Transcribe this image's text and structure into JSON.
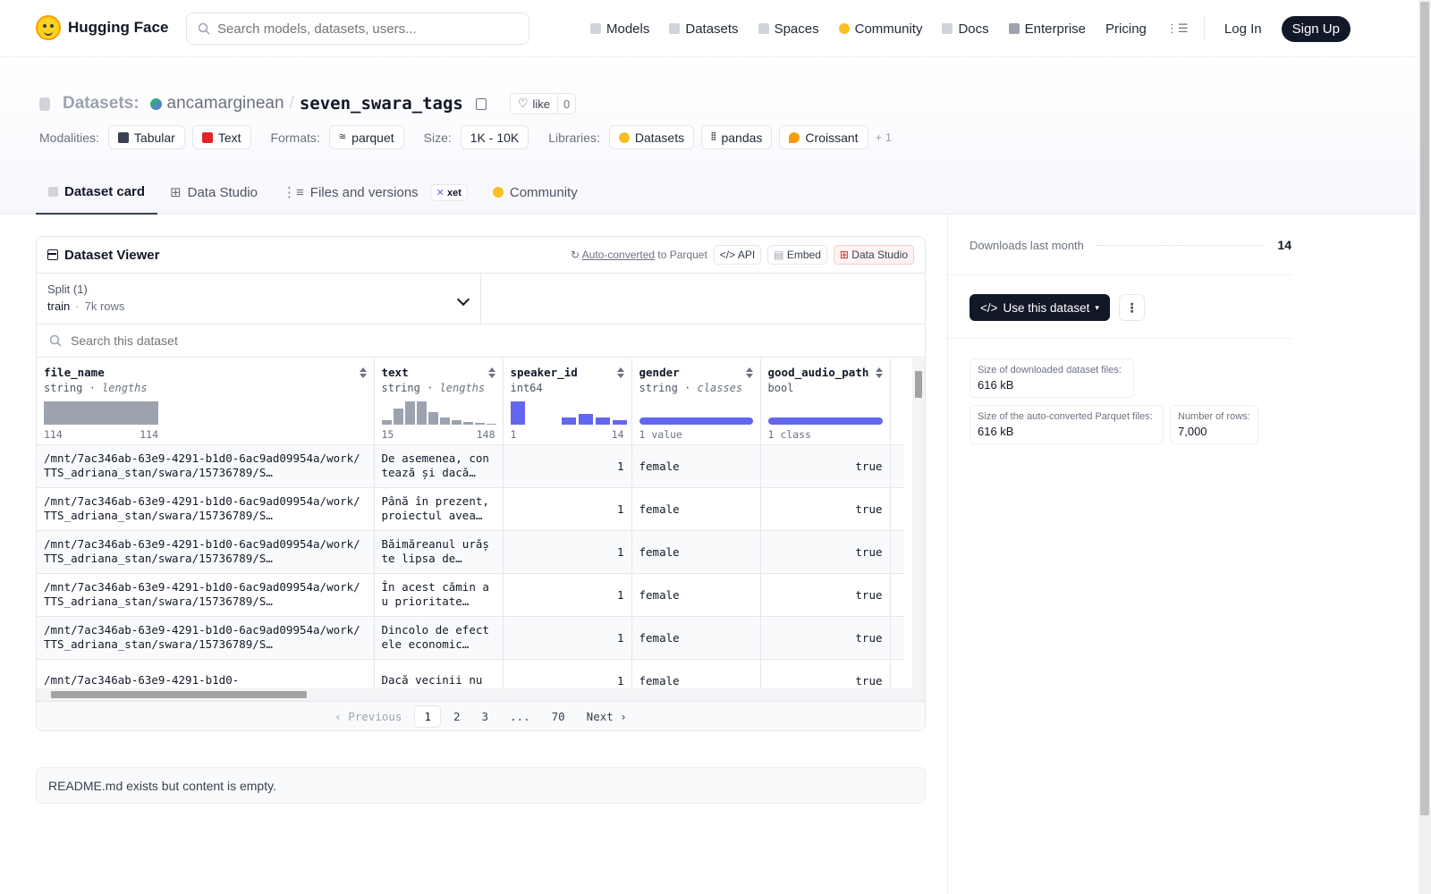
{
  "nav": {
    "brand": "Hugging Face",
    "search_placeholder": "Search models, datasets, users...",
    "links": [
      "Models",
      "Datasets",
      "Spaces",
      "Community",
      "Docs",
      "Enterprise",
      "Pricing"
    ],
    "login": "Log In",
    "signup": "Sign Up"
  },
  "header": {
    "type_label": "Datasets:",
    "owner": "ancamarginean",
    "separator": "/",
    "repo": "seven_swara_tags",
    "like_label": "like",
    "like_count": "0",
    "modalities_label": "Modalities:",
    "modalities": [
      "Tabular",
      "Text"
    ],
    "formats_label": "Formats:",
    "formats": [
      "parquet"
    ],
    "size_label": "Size:",
    "size": "1K - 10K",
    "libraries_label": "Libraries:",
    "libraries": [
      "Datasets",
      "pandas",
      "Croissant"
    ],
    "more": "+ 1"
  },
  "tabs": [
    {
      "label": "Dataset card",
      "active": true
    },
    {
      "label": "Data Studio",
      "active": false
    },
    {
      "label": "Files and versions",
      "badge": "xet",
      "active": false
    },
    {
      "label": "Community",
      "active": false
    }
  ],
  "viewer": {
    "title": "Dataset Viewer",
    "auto_converted": "Auto-converted",
    "to_parquet": "to Parquet",
    "api": "API",
    "embed": "Embed",
    "data_studio": "Data Studio",
    "split_label": "Split (1)",
    "split_value": "train",
    "split_rows": "7k rows",
    "search_placeholder": "Search this dataset",
    "columns": [
      {
        "name": "file_name",
        "type": "string",
        "stat": "lengths",
        "min": "114",
        "max": "114"
      },
      {
        "name": "text",
        "type": "string",
        "stat": "lengths",
        "min": "15",
        "max": "148"
      },
      {
        "name": "speaker_id",
        "type": "int64",
        "stat": "",
        "min": "1",
        "max": "14"
      },
      {
        "name": "gender",
        "type": "string",
        "stat": "classes",
        "summary": "1 value"
      },
      {
        "name": "good_audio_path",
        "type": "bool",
        "stat": "",
        "summary": "1 class"
      }
    ],
    "rows": [
      {
        "file_name": "/mnt/7ac346ab-63e9-4291-b1d0-6ac9ad09954a/work/TTS_adriana_stan/swara/15736789/S…",
        "text": "De asemenea, contează și dacă…",
        "speaker_id": "1",
        "gender": "female",
        "good_audio_path": "true"
      },
      {
        "file_name": "/mnt/7ac346ab-63e9-4291-b1d0-6ac9ad09954a/work/TTS_adriana_stan/swara/15736789/S…",
        "text": "Până în prezent, proiectul avea…",
        "speaker_id": "1",
        "gender": "female",
        "good_audio_path": "true"
      },
      {
        "file_name": "/mnt/7ac346ab-63e9-4291-b1d0-6ac9ad09954a/work/TTS_adriana_stan/swara/15736789/S…",
        "text": "Băimăreanul urăște lipsa de…",
        "speaker_id": "1",
        "gender": "female",
        "good_audio_path": "true"
      },
      {
        "file_name": "/mnt/7ac346ab-63e9-4291-b1d0-6ac9ad09954a/work/TTS_adriana_stan/swara/15736789/S…",
        "text": "În acest cămin au prioritate…",
        "speaker_id": "1",
        "gender": "female",
        "good_audio_path": "true"
      },
      {
        "file_name": "/mnt/7ac346ab-63e9-4291-b1d0-6ac9ad09954a/work/TTS_adriana_stan/swara/15736789/S…",
        "text": "Dincolo de efectele economic…",
        "speaker_id": "1",
        "gender": "female",
        "good_audio_path": "true"
      },
      {
        "file_name": "/mnt/7ac346ab-63e9-4291-b1d0-",
        "text": "Dacă vecinii nu",
        "speaker_id": "1",
        "gender": "female",
        "good_audio_path": "true"
      }
    ],
    "pagination": {
      "previous": "Previous",
      "pages": [
        "1",
        "2",
        "3",
        "...",
        "70"
      ],
      "current": "1",
      "next": "Next"
    }
  },
  "readme_text": "README.md exists but content is empty.",
  "sidebar": {
    "downloads_label": "Downloads last month",
    "downloads_value": "14",
    "use_button": "Use this dataset",
    "stats": [
      {
        "label": "Size of downloaded dataset files:",
        "value": "616 kB"
      },
      {
        "label": "Size of the auto-converted Parquet files:",
        "value": "616 kB"
      },
      {
        "label": "Number of rows:",
        "value": "7,000"
      }
    ]
  },
  "colors": {
    "accent": "#6366f1",
    "dark": "#111827",
    "muted": "#6b7280"
  }
}
